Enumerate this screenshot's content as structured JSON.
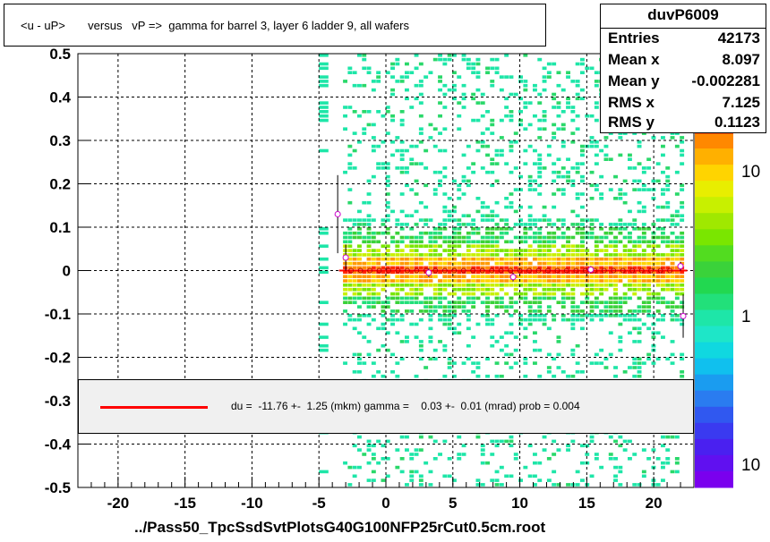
{
  "title": "<u - uP>       versus   vP =>  gamma for barrel 3, layer 6 ladder 9, all wafers",
  "stats": {
    "name": "duvP6009",
    "rows": [
      {
        "label": "Entries",
        "value": "42173"
      },
      {
        "label": "Mean x",
        "value": "8.097"
      },
      {
        "label": "Mean y",
        "value": "-0.002281"
      },
      {
        "label": "RMS x",
        "value": "7.125"
      },
      {
        "label": "RMS y",
        "value": "0.1123"
      }
    ]
  },
  "fit_text": "du =  -11.76 +-  1.25 (mkm) gamma =    0.03 +-  0.01 (mrad) prob = 0.004",
  "colors": {
    "fit_line": "#ff0000",
    "profile_marker": "#cc00cc"
  },
  "chart_data": {
    "type": "heatmap",
    "xlabel": "../Pass50_TpcSsdSvtPlotsG40G100NFP25rCut0.5cm.root",
    "xlim": [
      -23,
      23
    ],
    "ylim": [
      -0.5,
      0.5
    ],
    "x_ticks": [
      -20,
      -15,
      -10,
      -5,
      0,
      5,
      10,
      15,
      20
    ],
    "y_ticks": [
      0.5,
      0.4,
      0.3,
      0.2,
      0.1,
      0,
      -0.1,
      -0.2,
      -0.3,
      -0.4,
      -0.5
    ],
    "y_tick_labels": [
      "0.5",
      "0.4",
      "0.3",
      "0.2",
      "0.1",
      "0",
      "-0.1",
      "-0.2",
      "-0.3",
      "-0.4",
      "-0.5"
    ],
    "grid": true,
    "log_color_scale": true,
    "colorbar_labels": [
      "10",
      "1",
      "10"
    ],
    "data_x_range": [
      -3.2,
      22.3
    ],
    "fit_line": {
      "x": [
        -3.5,
        22.5
      ],
      "y": [
        0.0,
        0.0
      ]
    },
    "profile_points": [
      {
        "x": -3.6,
        "y": 0.13,
        "err": 0.09
      },
      {
        "x": -3.0,
        "y": 0.03,
        "err": 0.03
      },
      {
        "x": 3.2,
        "y": -0.005,
        "err": 0.01
      },
      {
        "x": 9.5,
        "y": -0.015,
        "err": 0.01
      },
      {
        "x": 15.3,
        "y": 0.002,
        "err": 0.008
      },
      {
        "x": 22.0,
        "y": 0.01,
        "err": 0.01
      },
      {
        "x": 22.2,
        "y": -0.105,
        "err": 0.05
      }
    ]
  }
}
